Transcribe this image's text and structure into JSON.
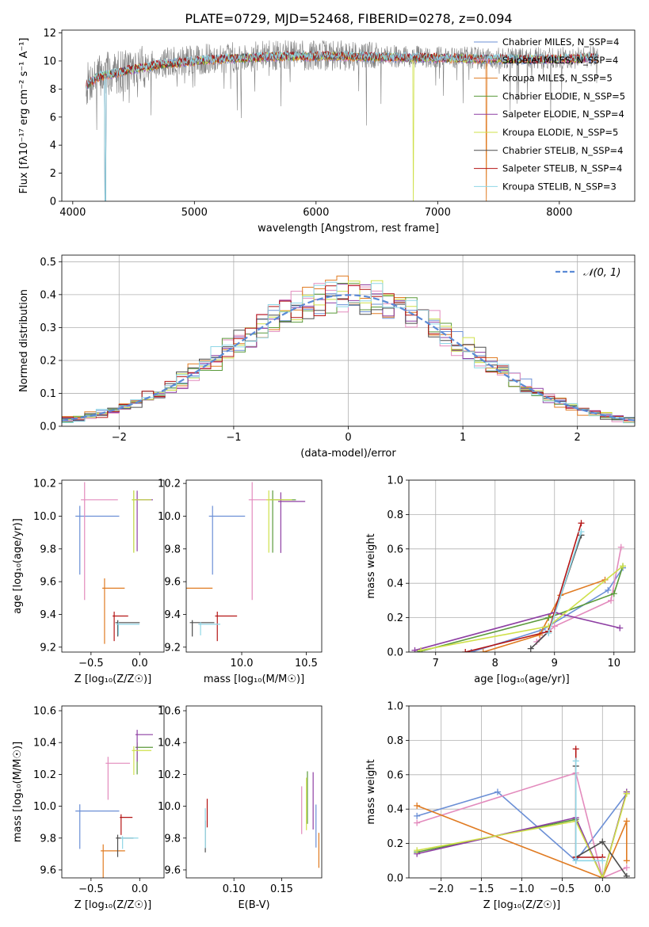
{
  "figure_title": "PLATE=0729, MJD=52468, FIBERID=0278, z=0.094",
  "colors": [
    "#6b8fd6",
    "#e38bbd",
    "#e07b22",
    "#5a9a3a",
    "#8e3fa3",
    "#cfe04a",
    "#4d4d4d",
    "#b41414",
    "#8fd6e6"
  ],
  "chart_data": [
    {
      "id": "spectrum",
      "type": "line",
      "title": "PLATE=0729, MJD=52468, FIBERID=0278, z=0.094",
      "xlabel": "wavelength [Angstrom, rest frame]",
      "ylabel": "Flux [fλ10⁻¹⁷ erg cm⁻² s⁻¹ A⁻¹]",
      "xlim": [
        3910,
        8620
      ],
      "ylim": [
        0,
        12.2
      ],
      "xticks": [
        "4000",
        "5000",
        "6000",
        "7000",
        "8000"
      ],
      "yticks": [
        "0",
        "2",
        "4",
        "6",
        "8",
        "10",
        "12"
      ],
      "data_color": "#808080",
      "legend_position": "upper right",
      "legend": [
        "Chabrier MILES, N_SSP=4",
        "Salpeter MILES, N_SSP=4",
        "Kroupa MILES, N_SSP=5",
        "Chabrier ELODIE, N_SSP=5",
        "Salpeter ELODIE, N_SSP=4",
        "Kroupa ELODIE, N_SSP=5",
        "Chabrier STELIB, N_SSP=4",
        "Salpeter STELIB, N_SSP=4",
        "Kroupa STELIB, N_SSP=3"
      ],
      "spectrum_shape": [
        [
          4110,
          8.3
        ],
        [
          4200,
          8.9
        ],
        [
          4400,
          9.3
        ],
        [
          4700,
          9.8
        ],
        [
          5200,
          10.2
        ],
        [
          5700,
          10.4
        ],
        [
          6200,
          10.4
        ],
        [
          6800,
          10.3
        ],
        [
          7400,
          10.2
        ],
        [
          8000,
          10.2
        ],
        [
          8320,
          10.3
        ]
      ]
    },
    {
      "id": "residuals",
      "type": "bar",
      "xlabel": "(data-model)/error",
      "ylabel": "Normed distribution",
      "xlim": [
        -2.5,
        2.5
      ],
      "ylim": [
        0,
        0.52
      ],
      "xticks": [
        "−2",
        "−1",
        "0",
        "1",
        "2"
      ],
      "yticks": [
        "0.0",
        "0.1",
        "0.2",
        "0.3",
        "0.4",
        "0.5"
      ],
      "grid": true,
      "legend": [
        "𝒩(0, 1)"
      ],
      "legend_position": "upper right",
      "bin_width": 0.1,
      "gaussian_color": "#5b8ad6"
    },
    {
      "id": "age_vs_Z",
      "type": "scatter",
      "xlabel": "Z [log₁₀(Z/Z☉)]",
      "ylabel": "age  [log₁₀(age/yr)]",
      "xlim": [
        -0.8,
        0.25
      ],
      "ylim": [
        9.17,
        10.22
      ],
      "xticks": [
        "−0.5",
        "0.0"
      ],
      "yticks": [
        "9.2",
        "9.4",
        "9.6",
        "9.8",
        "10.0",
        "10.2"
      ],
      "points": [
        {
          "x": -0.3,
          "y": 10.0,
          "xe": 0.45,
          "ye": 0.42,
          "c": 0
        },
        {
          "x": -0.3,
          "y": 10.1,
          "xe": 0.38,
          "ye": 0.72,
          "c": 1
        },
        {
          "x": -0.2,
          "y": 9.56,
          "xe": 0.23,
          "ye": 0.4,
          "c": 2
        },
        {
          "x": 0.08,
          "y": 10.1,
          "xe": 0.2,
          "ye": 0.38,
          "c": 3
        },
        {
          "x": 0.1,
          "y": 10.1,
          "xe": 0.18,
          "ye": 0.37,
          "c": 4
        },
        {
          "x": 0.08,
          "y": 10.1,
          "xe": 0.2,
          "ye": 0.38,
          "c": 5
        },
        {
          "x": -0.05,
          "y": 9.35,
          "xe": 0.25,
          "ye": 0.1,
          "c": 6
        },
        {
          "x": -0.15,
          "y": 9.39,
          "xe": 0.16,
          "ye": 0.18,
          "c": 7
        },
        {
          "x": -0.05,
          "y": 9.34,
          "xe": 0.24,
          "ye": 0.08,
          "c": 8
        }
      ]
    },
    {
      "id": "age_vs_mass",
      "type": "scatter",
      "xlabel": "mass [log₁₀(M/M☉)]",
      "ylabel": "",
      "xlim": [
        9.57,
        10.62
      ],
      "ylim": [
        9.17,
        10.22
      ],
      "xticks": [
        "10.0",
        "10.5"
      ],
      "yticks": [
        "9.2",
        "9.4",
        "9.6",
        "9.8",
        "10.0",
        "10.2"
      ],
      "points": [
        {
          "x": 9.97,
          "y": 10.0,
          "xe": 0.28,
          "ye": 0.42,
          "c": 0
        },
        {
          "x": 10.27,
          "y": 10.1,
          "xe": 0.27,
          "ye": 0.72,
          "c": 1
        },
        {
          "x": 9.72,
          "y": 9.56,
          "xe": 0.27,
          "ye": 0.4,
          "c": 2
        },
        {
          "x": 10.38,
          "y": 10.1,
          "xe": 0.2,
          "ye": 0.38,
          "c": 3
        },
        {
          "x": 10.45,
          "y": 10.09,
          "xe": 0.21,
          "ye": 0.37,
          "c": 4
        },
        {
          "x": 10.35,
          "y": 10.1,
          "xe": 0.2,
          "ye": 0.38,
          "c": 5
        },
        {
          "x": 9.75,
          "y": 9.35,
          "xe": 0.19,
          "ye": 0.1,
          "c": 6
        },
        {
          "x": 9.93,
          "y": 9.39,
          "xe": 0.17,
          "ye": 0.18,
          "c": 7
        },
        {
          "x": 9.8,
          "y": 9.34,
          "xe": 0.17,
          "ye": 0.08,
          "c": 8
        }
      ]
    },
    {
      "id": "weight_vs_age",
      "type": "line",
      "xlabel": "age  [log₁₀(age/yr)]",
      "ylabel": "mass weight",
      "xlim": [
        6.55,
        10.35
      ],
      "ylim": [
        0,
        1.0
      ],
      "xticks": [
        "7",
        "8",
        "9",
        "10"
      ],
      "yticks": [
        "0.0",
        "0.2",
        "0.4",
        "0.6",
        "0.8",
        "1.0"
      ],
      "grid": true,
      "series": [
        {
          "c": 0,
          "points": [
            [
              7.6,
              0.0
            ],
            [
              8.8,
              0.13
            ],
            [
              9.9,
              0.36
            ],
            [
              10.15,
              0.49
            ]
          ]
        },
        {
          "c": 1,
          "points": [
            [
              8.7,
              0.06
            ],
            [
              9.0,
              0.15
            ],
            [
              9.95,
              0.3
            ],
            [
              10.12,
              0.61
            ]
          ]
        },
        {
          "c": 2,
          "points": [
            [
              7.8,
              0.0
            ],
            [
              8.75,
              0.1
            ],
            [
              9.1,
              0.33
            ],
            [
              9.85,
              0.42
            ]
          ]
        },
        {
          "c": 3,
          "points": [
            [
              6.7,
              0.0
            ],
            [
              8.9,
              0.2
            ],
            [
              10.0,
              0.34
            ],
            [
              10.15,
              0.5
            ]
          ]
        },
        {
          "c": 4,
          "points": [
            [
              6.65,
              0.01
            ],
            [
              9.0,
              0.23
            ],
            [
              10.1,
              0.14
            ]
          ]
        },
        {
          "c": 5,
          "points": [
            [
              6.75,
              0.01
            ],
            [
              8.9,
              0.15
            ],
            [
              10.15,
              0.5
            ]
          ]
        },
        {
          "c": 6,
          "points": [
            [
              8.6,
              0.02
            ],
            [
              8.9,
              0.12
            ],
            [
              9.45,
              0.68
            ]
          ]
        },
        {
          "c": 7,
          "points": [
            [
              7.5,
              0.0
            ],
            [
              8.9,
              0.12
            ],
            [
              9.45,
              0.75
            ]
          ]
        },
        {
          "c": 8,
          "points": [
            [
              8.9,
              0.11
            ],
            [
              9.45,
              0.7
            ]
          ]
        }
      ]
    },
    {
      "id": "mass_vs_Z",
      "type": "scatter",
      "xlabel": "Z [log₁₀(Z/Z☉)]",
      "ylabel": "mass [log₁₀(M/M☉)]",
      "xlim": [
        -0.8,
        0.25
      ],
      "ylim": [
        9.55,
        10.63
      ],
      "xticks": [
        "−0.5",
        "0.0"
      ],
      "yticks": [
        "9.6",
        "9.8",
        "10.0",
        "10.2",
        "10.4",
        "10.6"
      ],
      "points": [
        {
          "x": -0.3,
          "y": 9.97,
          "xe": 0.45,
          "ye": 0.28,
          "c": 0
        },
        {
          "x": -0.15,
          "y": 10.27,
          "xe": 0.25,
          "ye": 0.27,
          "c": 1
        },
        {
          "x": -0.2,
          "y": 9.72,
          "xe": 0.25,
          "ye": 0.27,
          "c": 2
        },
        {
          "x": 0.1,
          "y": 10.37,
          "xe": 0.18,
          "ye": 0.2,
          "c": 3
        },
        {
          "x": 0.1,
          "y": 10.45,
          "xe": 0.18,
          "ye": 0.2,
          "c": 4
        },
        {
          "x": 0.08,
          "y": 10.35,
          "xe": 0.2,
          "ye": 0.18,
          "c": 5
        },
        {
          "x": -0.1,
          "y": 9.8,
          "xe": 0.18,
          "ye": 0.14,
          "c": 6
        },
        {
          "x": -0.1,
          "y": 9.93,
          "xe": 0.13,
          "ye": 0.13,
          "c": 7
        },
        {
          "x": -0.05,
          "y": 9.8,
          "xe": 0.18,
          "ye": 0.08,
          "c": 8
        }
      ]
    },
    {
      "id": "mass_vs_EBV",
      "type": "scatter",
      "xlabel": "E(B-V)",
      "ylabel": "",
      "xlim": [
        0.05,
        0.192
      ],
      "ylim": [
        9.55,
        10.63
      ],
      "xticks": [
        "0.10",
        "0.15"
      ],
      "yticks": [
        "9.6",
        "9.8",
        "10.0",
        "10.2",
        "10.4",
        "10.6"
      ],
      "points": [
        {
          "x": 0.186,
          "y": 9.97,
          "xe": 0,
          "ye": 0.27,
          "c": 0
        },
        {
          "x": 0.171,
          "y": 10.08,
          "xe": 0,
          "ye": 0.3,
          "c": 1
        },
        {
          "x": 0.189,
          "y": 9.8,
          "xe": 0,
          "ye": 0.22,
          "c": 2
        },
        {
          "x": 0.177,
          "y": 10.17,
          "xe": 0,
          "ye": 0.33,
          "c": 3
        },
        {
          "x": 0.183,
          "y": 10.16,
          "xe": 0,
          "ye": 0.36,
          "c": 4
        },
        {
          "x": 0.176,
          "y": 10.13,
          "xe": 0,
          "ye": 0.33,
          "c": 5
        },
        {
          "x": 0.07,
          "y": 9.88,
          "xe": 0,
          "ye": 0.2,
          "c": 6
        },
        {
          "x": 0.072,
          "y": 10.02,
          "xe": 0,
          "ye": 0.18,
          "c": 7
        },
        {
          "x": 0.07,
          "y": 9.95,
          "xe": 0,
          "ye": 0.25,
          "c": 8
        }
      ]
    },
    {
      "id": "weight_vs_Z",
      "type": "line",
      "xlabel": "Z [log₁₀(Z/Z☉)]",
      "ylabel": "mass weight",
      "xlim": [
        -2.4,
        0.4
      ],
      "ylim": [
        0,
        1.0
      ],
      "xticks": [
        "−2.0",
        "−1.5",
        "−1.0",
        "−0.5",
        "0.0"
      ],
      "yticks": [
        "0.0",
        "0.2",
        "0.4",
        "0.6",
        "0.8",
        "1.0"
      ],
      "grid": true,
      "series": [
        {
          "c": 0,
          "points": [
            [
              -2.3,
              0.36
            ],
            [
              -1.3,
              0.5
            ],
            [
              -0.33,
              0.1
            ],
            [
              0.3,
              0.49
            ]
          ]
        },
        {
          "c": 1,
          "points": [
            [
              -2.3,
              0.32
            ],
            [
              -0.33,
              0.61
            ],
            [
              0.0,
              0.0
            ],
            [
              0.3,
              0.06
            ]
          ]
        },
        {
          "c": 2,
          "points": [
            [
              -2.3,
              0.42
            ],
            [
              0.0,
              0.0
            ],
            [
              0.3,
              0.33
            ],
            [
              0.3,
              0.1
            ]
          ]
        },
        {
          "c": 3,
          "points": [
            [
              -2.3,
              0.15
            ],
            [
              -0.33,
              0.34
            ],
            [
              0.0,
              0.0
            ],
            [
              0.3,
              0.5
            ]
          ]
        },
        {
          "c": 4,
          "points": [
            [
              -2.3,
              0.14
            ],
            [
              -0.33,
              0.35
            ],
            [
              0.0,
              0.0
            ],
            [
              0.3,
              0.5
            ]
          ]
        },
        {
          "c": 5,
          "points": [
            [
              -2.3,
              0.16
            ],
            [
              -0.33,
              0.33
            ],
            [
              0.0,
              0.0
            ],
            [
              0.3,
              0.49
            ]
          ]
        },
        {
          "c": 6,
          "points": [
            [
              -0.33,
              0.65
            ],
            [
              -0.33,
              0.12
            ],
            [
              0.0,
              0.21
            ],
            [
              0.3,
              0.01
            ]
          ]
        },
        {
          "c": 7,
          "points": [
            [
              -0.33,
              0.75
            ],
            [
              -0.33,
              0.12
            ],
            [
              0.0,
              0.12
            ]
          ]
        },
        {
          "c": 8,
          "points": [
            [
              -0.33,
              0.68
            ],
            [
              -0.33,
              0.1
            ],
            [
              0.0,
              0.1
            ]
          ]
        }
      ]
    }
  ]
}
